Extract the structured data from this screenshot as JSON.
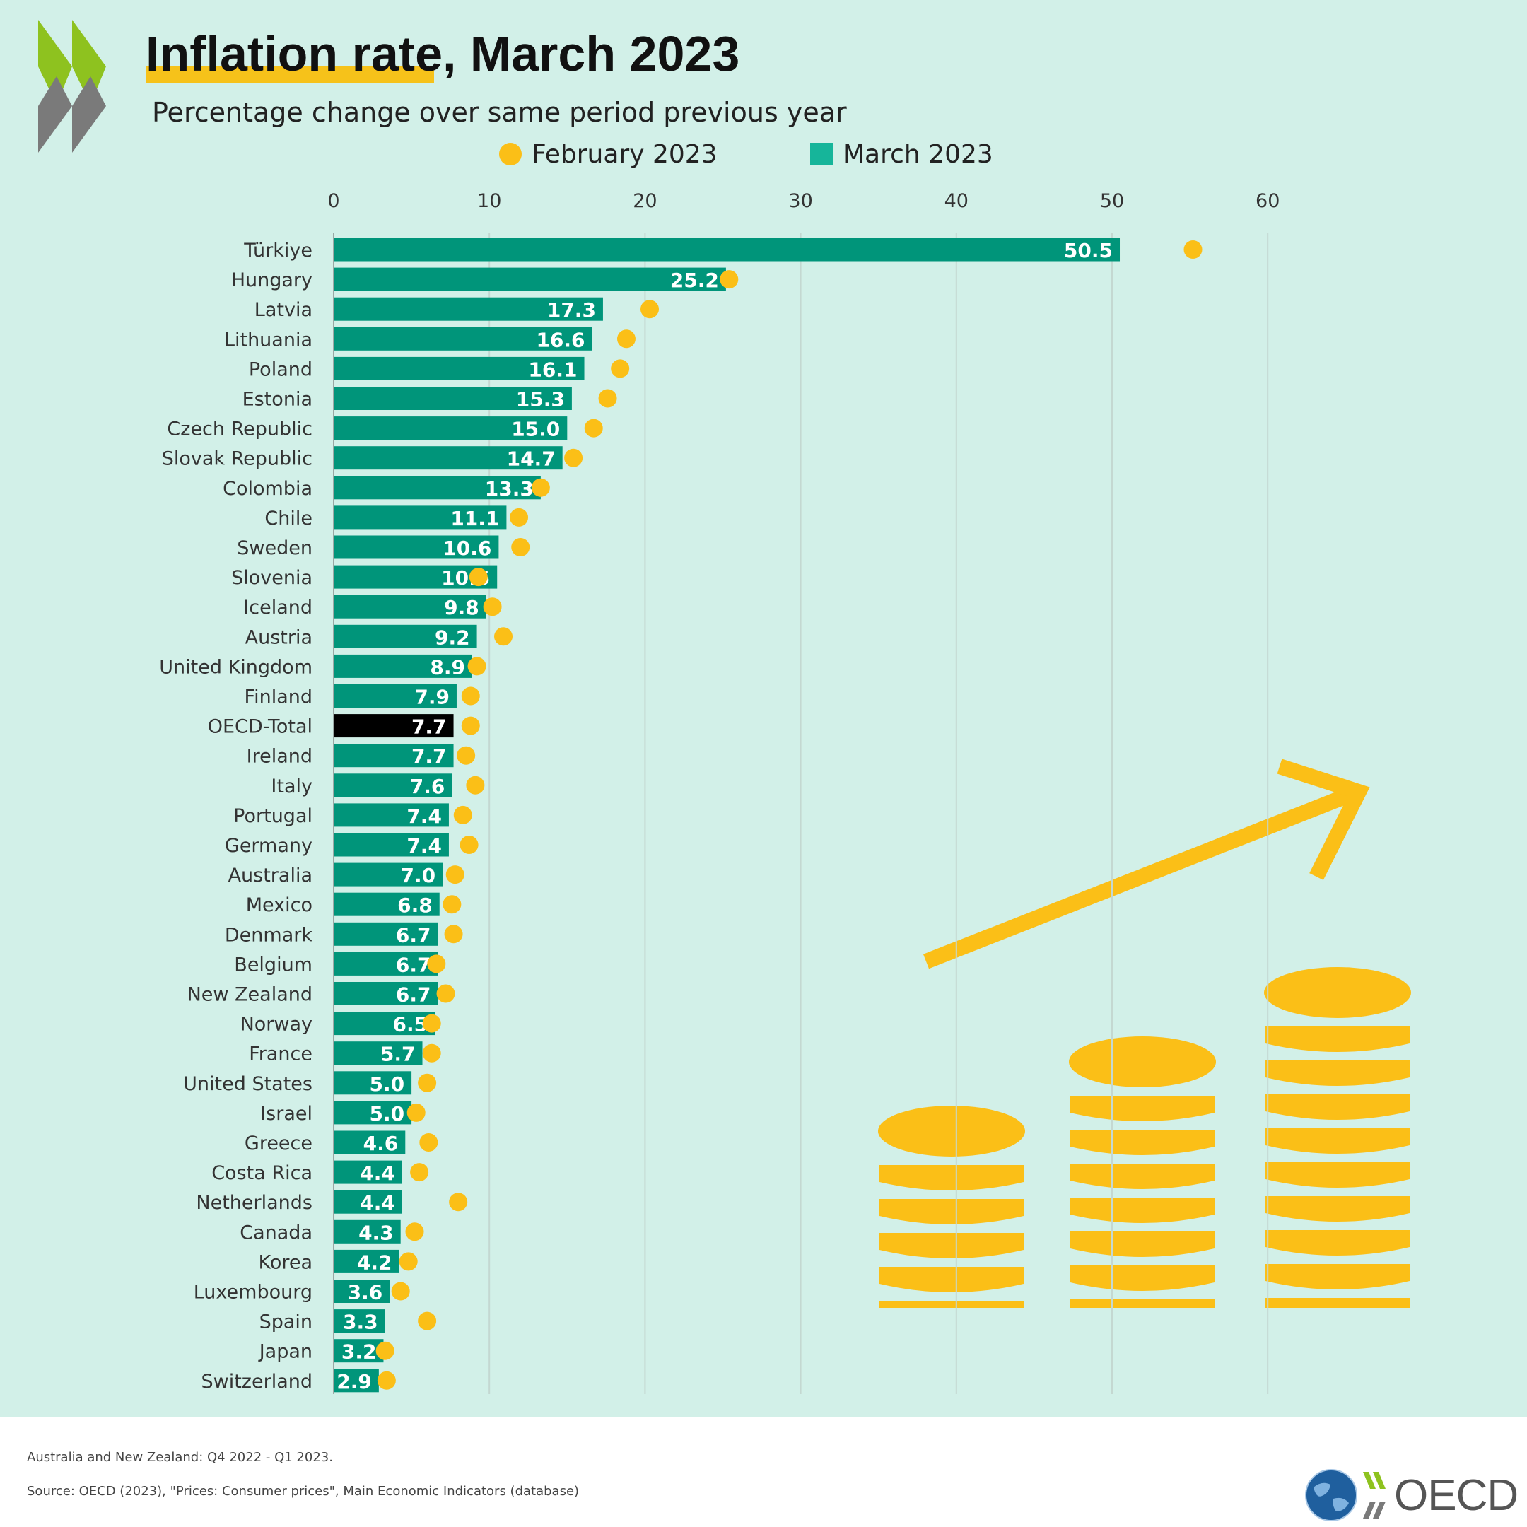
{
  "header": {
    "title": "Inflation rate, March 2023",
    "subtitle": "Percentage change over same period previous year"
  },
  "legend": {
    "feb_label": "February 2023",
    "mar_label": "March 2023"
  },
  "footer": {
    "note": "Australia and New Zealand: Q4 2022 - Q1 2023.",
    "source": "Source: OECD (2023), \"Prices: Consumer prices\", Main Economic Indicators (database)",
    "logo_text": "OECD"
  },
  "colors": {
    "background": "#d2f0e8",
    "bar": "#00957a",
    "highlight_bar": "#000000",
    "dot": "#fbbf17",
    "accent": "#f6c21a",
    "logo_green": "#8ec21f",
    "logo_gray": "#7a7a7a"
  },
  "decor_icons": [
    "oecd-chevrons-icon",
    "rising-arrow-icon",
    "coin-stack-icon",
    "globe-icon"
  ],
  "chart_data": {
    "type": "bar",
    "orientation": "horizontal",
    "title": "Inflation rate, March 2023",
    "subtitle": "Percentage change over same period previous year",
    "xlim": [
      0,
      60
    ],
    "xticks": [
      0,
      10,
      20,
      30,
      40,
      50,
      60
    ],
    "grid": true,
    "legend_position": "top",
    "categories": [
      "Türkiye",
      "Hungary",
      "Latvia",
      "Lithuania",
      "Poland",
      "Estonia",
      "Czech Republic",
      "Slovak Republic",
      "Colombia",
      "Chile",
      "Sweden",
      "Slovenia",
      "Iceland",
      "Austria",
      "United Kingdom",
      "Finland",
      "OECD-Total",
      "Ireland",
      "Italy",
      "Portugal",
      "Germany",
      "Australia",
      "Mexico",
      "Denmark",
      "Belgium",
      "New Zealand",
      "Norway",
      "France",
      "United States",
      "Israel",
      "Greece",
      "Costa Rica",
      "Netherlands",
      "Canada",
      "Korea",
      "Luxembourg",
      "Spain",
      "Japan",
      "Switzerland"
    ],
    "highlight": "OECD-Total",
    "series": [
      {
        "name": "March 2023",
        "mark": "bar",
        "values": [
          50.5,
          25.2,
          17.3,
          16.6,
          16.1,
          15.3,
          15.0,
          14.7,
          13.3,
          11.1,
          10.6,
          10.5,
          9.8,
          9.2,
          8.9,
          7.9,
          7.7,
          7.7,
          7.6,
          7.4,
          7.4,
          7.0,
          6.8,
          6.7,
          6.7,
          6.7,
          6.5,
          5.7,
          5.0,
          5.0,
          4.6,
          4.4,
          4.4,
          4.3,
          4.2,
          3.6,
          3.3,
          3.2,
          2.9
        ]
      },
      {
        "name": "February 2023",
        "mark": "dot",
        "values": [
          55.2,
          25.4,
          20.3,
          18.8,
          18.4,
          17.6,
          16.7,
          15.4,
          13.3,
          11.9,
          12.0,
          9.3,
          10.2,
          10.9,
          9.2,
          8.8,
          8.8,
          8.5,
          9.1,
          8.3,
          8.7,
          7.8,
          7.6,
          7.7,
          6.6,
          7.2,
          6.3,
          6.3,
          6.0,
          5.3,
          6.1,
          5.5,
          8.0,
          5.2,
          4.8,
          4.3,
          6.0,
          3.3,
          3.4
        ]
      }
    ]
  }
}
